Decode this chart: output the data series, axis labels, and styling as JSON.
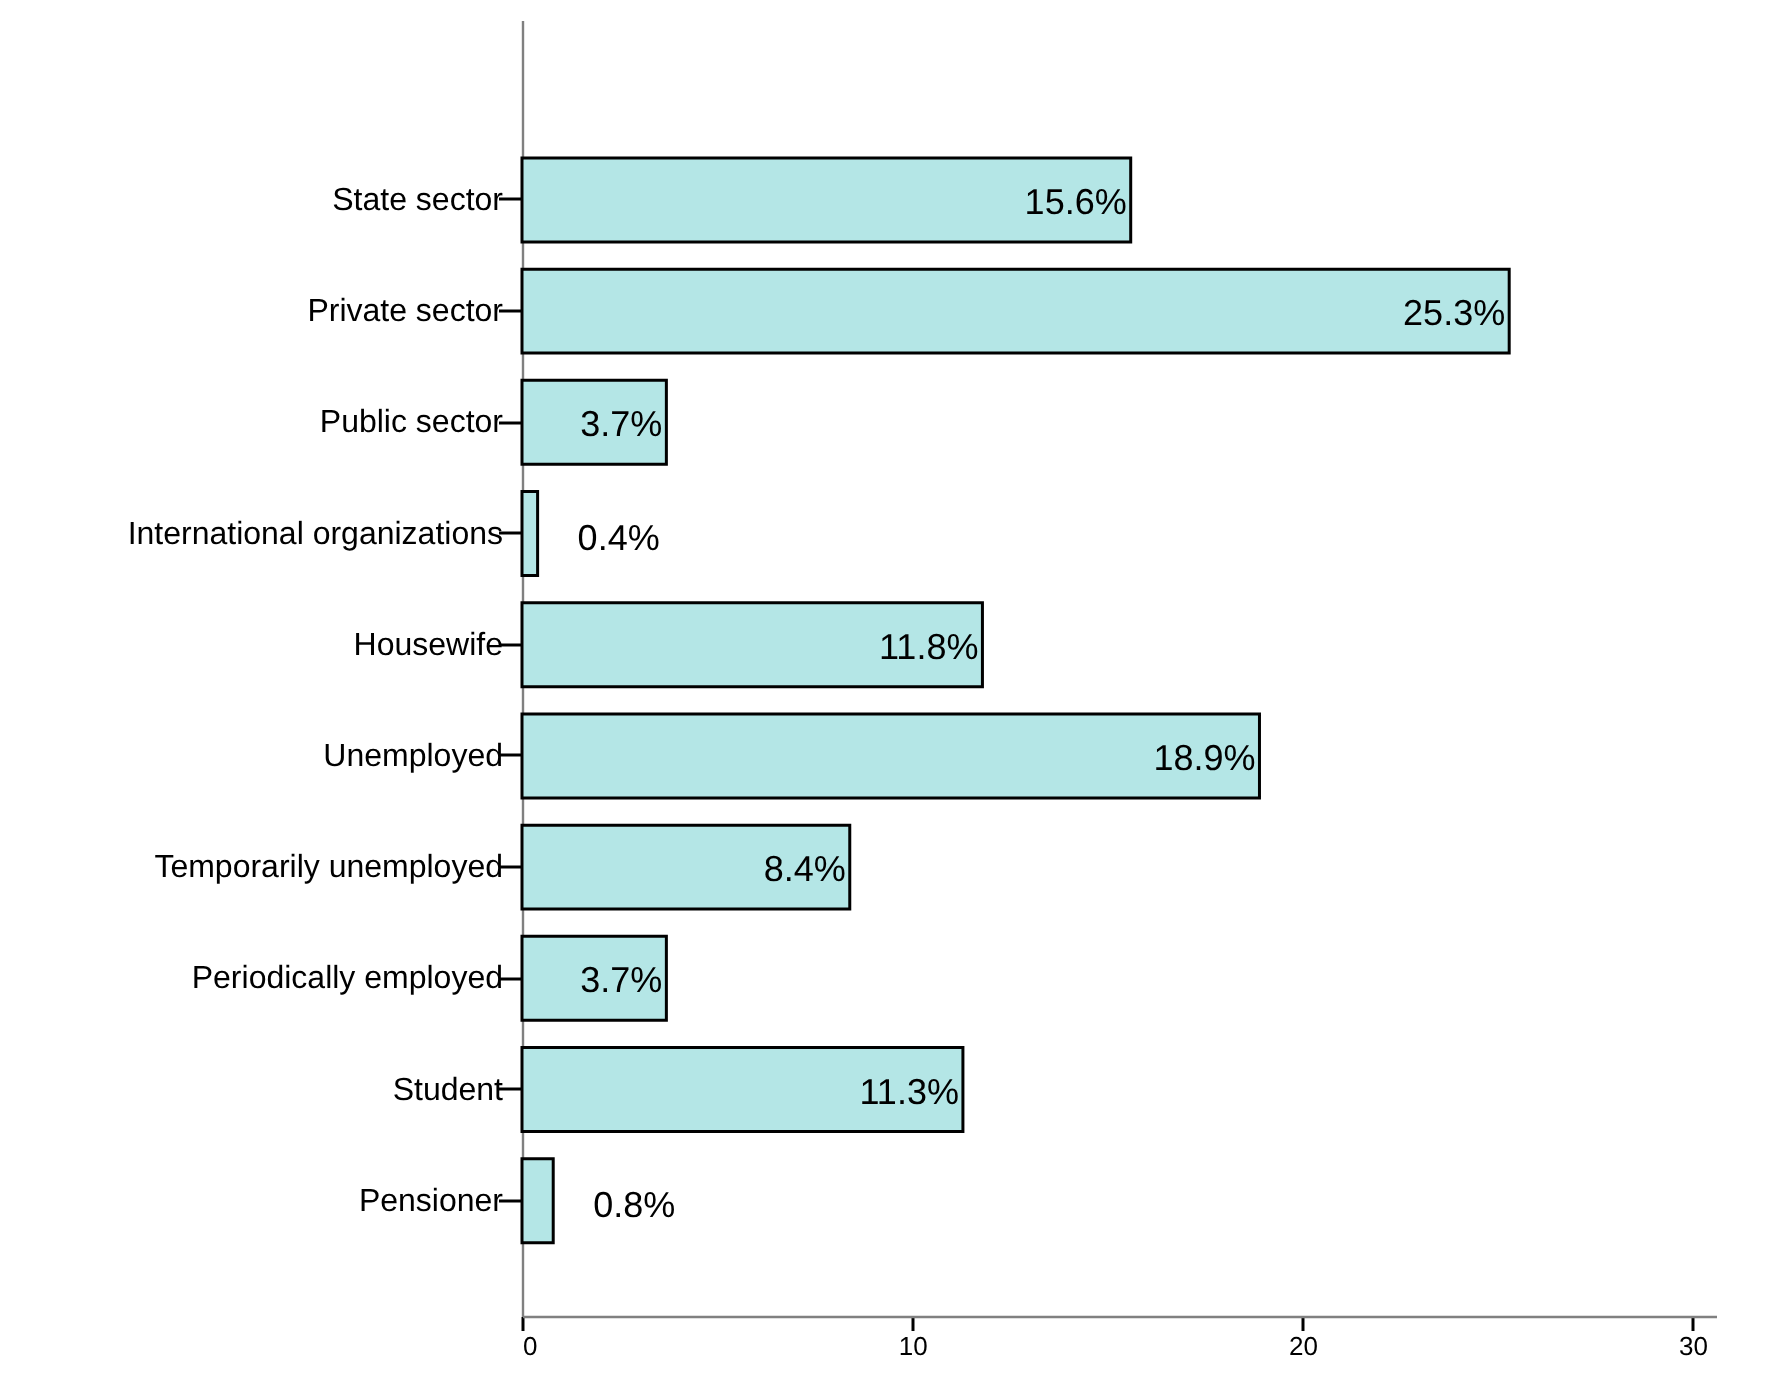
{
  "chart_data": {
    "type": "bar",
    "orientation": "horizontal",
    "categories": [
      "State sector",
      "Private sector",
      "Public sector",
      "International organizations",
      "Housewife",
      "Unemployed",
      "Temporarily unemployed",
      "Periodically employed",
      "Student",
      "Pensioner"
    ],
    "values": [
      15.6,
      25.3,
      3.7,
      0.4,
      11.8,
      18.9,
      8.4,
      3.7,
      11.3,
      0.8
    ],
    "value_labels": [
      "15.6%",
      "25.3%",
      "3.7%",
      "0.4%",
      "11.8%",
      "18.9%",
      "8.4%",
      "3.7%",
      "11.3%",
      "0.8%"
    ],
    "color": "#b4e6e6",
    "xlim": [
      0,
      30.6
    ],
    "xticks": [
      0,
      10,
      20,
      30
    ],
    "grid": false
  }
}
